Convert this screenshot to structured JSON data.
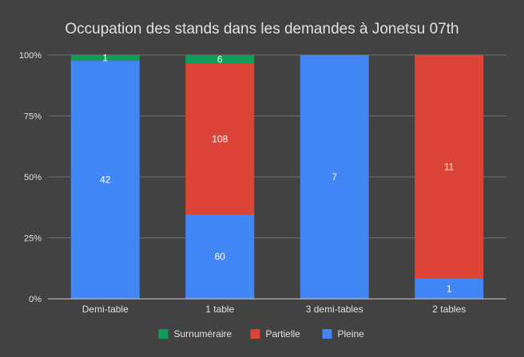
{
  "colors": {
    "background": "#424242",
    "text": "#e0e0e0",
    "grid": "#6e6e6e",
    "axis": "#cfcfcf",
    "bar_label": "#ffffff"
  },
  "chart_data": {
    "type": "bar",
    "stacked": "percent",
    "title": "Occupation des stands dans les demandes à Jonetsu 07th",
    "xlabel": "",
    "ylabel": "",
    "ylim": [
      0,
      1
    ],
    "y_ticks": [
      {
        "value": 0,
        "label": "0%"
      },
      {
        "value": 0.25,
        "label": "25%"
      },
      {
        "value": 0.5,
        "label": "50%"
      },
      {
        "value": 0.75,
        "label": "75%"
      },
      {
        "value": 1,
        "label": "100%"
      }
    ],
    "categories": [
      "Demi-table",
      "1 table",
      "3 demi-tables",
      "2 tables"
    ],
    "series": [
      {
        "name": "Pleine",
        "color": "#4285f4",
        "values": [
          42,
          60,
          7,
          1
        ]
      },
      {
        "name": "Partielle",
        "color": "#db4437",
        "values": [
          0,
          108,
          0,
          11
        ]
      },
      {
        "name": "Surnuméraire",
        "color": "#0f9d58",
        "values": [
          1,
          6,
          0,
          0
        ]
      }
    ],
    "legend": {
      "position": "bottom",
      "order": [
        "Surnuméraire",
        "Partielle",
        "Pleine"
      ]
    },
    "grid": true
  }
}
